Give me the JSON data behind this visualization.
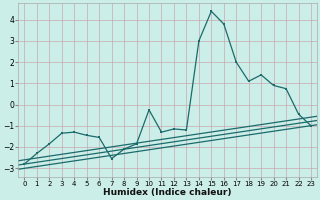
{
  "xlabel": "Humidex (Indice chaleur)",
  "bg_color": "#cceee8",
  "grid_color": "#c8a8b0",
  "line_color": "#1a6b6b",
  "xlim": [
    -0.5,
    23.5
  ],
  "ylim": [
    -3.4,
    4.8
  ],
  "xticks": [
    0,
    1,
    2,
    3,
    4,
    5,
    6,
    7,
    8,
    9,
    10,
    11,
    12,
    13,
    14,
    15,
    16,
    17,
    18,
    19,
    20,
    21,
    22,
    23
  ],
  "yticks": [
    -3,
    -2,
    -1,
    0,
    1,
    2,
    3,
    4
  ],
  "main_x": [
    0,
    1,
    2,
    3,
    4,
    5,
    6,
    7,
    8,
    9,
    10,
    11,
    12,
    13,
    14,
    15,
    16,
    17,
    18,
    19,
    20,
    21,
    22,
    23
  ],
  "main_y": [
    -2.8,
    -2.3,
    -1.85,
    -1.35,
    -1.3,
    -1.45,
    -1.55,
    -2.55,
    -2.1,
    -1.85,
    -0.25,
    -1.3,
    -1.15,
    -1.2,
    3.0,
    4.4,
    3.8,
    2.0,
    1.1,
    1.4,
    0.9,
    0.75,
    -0.45,
    -1.0
  ],
  "trend_lines": [
    [
      [
        -0.5,
        23.5
      ],
      [
        -3.05,
        -0.95
      ]
    ],
    [
      [
        -0.5,
        23.5
      ],
      [
        -2.85,
        -0.75
      ]
    ],
    [
      [
        -0.5,
        23.5
      ],
      [
        -2.65,
        -0.55
      ]
    ]
  ]
}
